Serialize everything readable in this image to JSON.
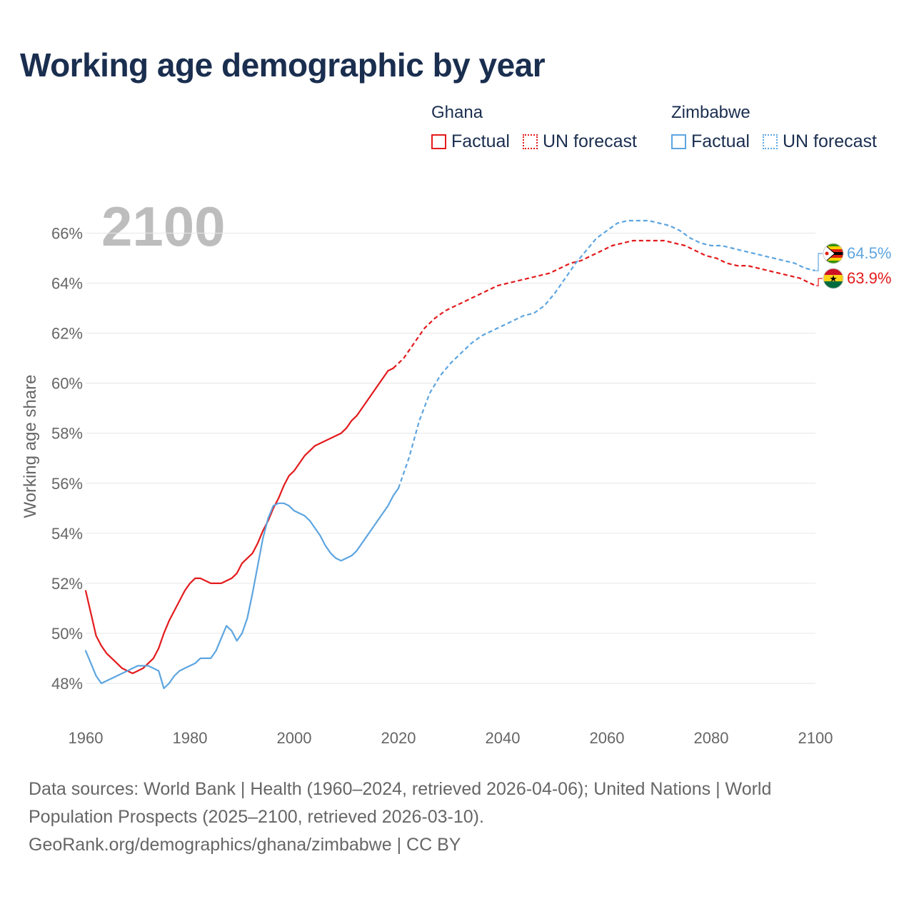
{
  "title": "Working age demographic by year",
  "legend": {
    "groups": [
      {
        "country": "Ghana",
        "factual_label": "Factual",
        "forecast_label": "UN forecast",
        "color": "#e31a1c"
      },
      {
        "country": "Zimbabwe",
        "factual_label": "Factual",
        "forecast_label": "UN forecast",
        "color": "#5da5e0"
      }
    ]
  },
  "year_display": "2100",
  "footer": {
    "line1": "Data sources: World Bank | Health (1960–2024, retrieved 2026-04-06); United Nations | World",
    "line2": "Population Prospects (2025–2100, retrieved 2026-03-10).",
    "line3": "GeoRank.org/demographics/ghana/zimbabwe | CC BY"
  },
  "chart_data": {
    "type": "line",
    "title": "Working age demographic by year",
    "xlabel": "",
    "ylabel": "Working age share",
    "xlim": [
      1960,
      2100
    ],
    "ylim": [
      46.4,
      67.5
    ],
    "x_ticks": [
      1960,
      1980,
      2000,
      2020,
      2040,
      2060,
      2080,
      2100
    ],
    "y_ticks": [
      48,
      50,
      52,
      54,
      56,
      58,
      60,
      62,
      64,
      66
    ],
    "y_tick_labels": [
      "48%",
      "50%",
      "52%",
      "54%",
      "56%",
      "58%",
      "60%",
      "62%",
      "64%",
      "66%"
    ],
    "grid": "horizontal",
    "series": [
      {
        "name": "Ghana",
        "segment": "Factual",
        "color": "#e31a1c",
        "style": "solid",
        "points": [
          [
            1960,
            51.7
          ],
          [
            1961,
            50.8
          ],
          [
            1962,
            49.9
          ],
          [
            1963,
            49.5
          ],
          [
            1964,
            49.2
          ],
          [
            1965,
            49.0
          ],
          [
            1966,
            48.8
          ],
          [
            1967,
            48.6
          ],
          [
            1968,
            48.5
          ],
          [
            1969,
            48.4
          ],
          [
            1970,
            48.5
          ],
          [
            1971,
            48.6
          ],
          [
            1972,
            48.8
          ],
          [
            1973,
            49.0
          ],
          [
            1974,
            49.4
          ],
          [
            1975,
            50.0
          ],
          [
            1976,
            50.5
          ],
          [
            1977,
            50.9
          ],
          [
            1978,
            51.3
          ],
          [
            1979,
            51.7
          ],
          [
            1980,
            52.0
          ],
          [
            1981,
            52.2
          ],
          [
            1982,
            52.2
          ],
          [
            1983,
            52.1
          ],
          [
            1984,
            52.0
          ],
          [
            1985,
            52.0
          ],
          [
            1986,
            52.0
          ],
          [
            1987,
            52.1
          ],
          [
            1988,
            52.2
          ],
          [
            1989,
            52.4
          ],
          [
            1990,
            52.8
          ],
          [
            1991,
            53.0
          ],
          [
            1992,
            53.2
          ],
          [
            1993,
            53.6
          ],
          [
            1994,
            54.1
          ],
          [
            1995,
            54.5
          ],
          [
            1996,
            55.0
          ],
          [
            1997,
            55.4
          ],
          [
            1998,
            55.9
          ],
          [
            1999,
            56.3
          ],
          [
            2000,
            56.5
          ],
          [
            2001,
            56.8
          ],
          [
            2002,
            57.1
          ],
          [
            2003,
            57.3
          ],
          [
            2004,
            57.5
          ],
          [
            2005,
            57.6
          ],
          [
            2006,
            57.7
          ],
          [
            2007,
            57.8
          ],
          [
            2008,
            57.9
          ],
          [
            2009,
            58.0
          ],
          [
            2010,
            58.2
          ],
          [
            2011,
            58.5
          ],
          [
            2012,
            58.7
          ],
          [
            2013,
            59.0
          ],
          [
            2014,
            59.3
          ],
          [
            2015,
            59.6
          ],
          [
            2016,
            59.9
          ],
          [
            2017,
            60.2
          ],
          [
            2018,
            60.5
          ],
          [
            2019,
            60.6
          ]
        ]
      },
      {
        "name": "Ghana",
        "segment": "UN forecast",
        "color": "#e31a1c",
        "style": "dashed",
        "points": [
          [
            2019,
            60.6
          ],
          [
            2021,
            61.0
          ],
          [
            2023,
            61.6
          ],
          [
            2025,
            62.2
          ],
          [
            2027,
            62.6
          ],
          [
            2029,
            62.9
          ],
          [
            2031,
            63.1
          ],
          [
            2033,
            63.3
          ],
          [
            2035,
            63.5
          ],
          [
            2037,
            63.7
          ],
          [
            2039,
            63.9
          ],
          [
            2041,
            64.0
          ],
          [
            2043,
            64.1
          ],
          [
            2045,
            64.2
          ],
          [
            2047,
            64.3
          ],
          [
            2049,
            64.4
          ],
          [
            2051,
            64.6
          ],
          [
            2053,
            64.8
          ],
          [
            2055,
            64.9
          ],
          [
            2057,
            65.1
          ],
          [
            2059,
            65.3
          ],
          [
            2061,
            65.5
          ],
          [
            2063,
            65.6
          ],
          [
            2065,
            65.7
          ],
          [
            2067,
            65.7
          ],
          [
            2069,
            65.7
          ],
          [
            2071,
            65.7
          ],
          [
            2073,
            65.6
          ],
          [
            2075,
            65.5
          ],
          [
            2077,
            65.3
          ],
          [
            2079,
            65.1
          ],
          [
            2081,
            65.0
          ],
          [
            2083,
            64.8
          ],
          [
            2085,
            64.7
          ],
          [
            2087,
            64.7
          ],
          [
            2089,
            64.6
          ],
          [
            2091,
            64.5
          ],
          [
            2093,
            64.4
          ],
          [
            2095,
            64.3
          ],
          [
            2097,
            64.2
          ],
          [
            2099,
            64.0
          ],
          [
            2100,
            63.9
          ]
        ]
      },
      {
        "name": "Zimbabwe",
        "segment": "Factual",
        "color": "#5da5e0",
        "style": "solid",
        "points": [
          [
            1960,
            49.3
          ],
          [
            1961,
            48.8
          ],
          [
            1962,
            48.3
          ],
          [
            1963,
            48.0
          ],
          [
            1964,
            48.1
          ],
          [
            1965,
            48.2
          ],
          [
            1966,
            48.3
          ],
          [
            1967,
            48.4
          ],
          [
            1968,
            48.5
          ],
          [
            1969,
            48.6
          ],
          [
            1970,
            48.7
          ],
          [
            1971,
            48.7
          ],
          [
            1972,
            48.7
          ],
          [
            1973,
            48.6
          ],
          [
            1974,
            48.5
          ],
          [
            1975,
            47.8
          ],
          [
            1976,
            48.0
          ],
          [
            1977,
            48.3
          ],
          [
            1978,
            48.5
          ],
          [
            1979,
            48.6
          ],
          [
            1980,
            48.7
          ],
          [
            1981,
            48.8
          ],
          [
            1982,
            49.0
          ],
          [
            1983,
            49.0
          ],
          [
            1984,
            49.0
          ],
          [
            1985,
            49.3
          ],
          [
            1986,
            49.8
          ],
          [
            1987,
            50.3
          ],
          [
            1988,
            50.1
          ],
          [
            1989,
            49.7
          ],
          [
            1990,
            50.0
          ],
          [
            1991,
            50.6
          ],
          [
            1992,
            51.6
          ],
          [
            1993,
            52.7
          ],
          [
            1994,
            53.8
          ],
          [
            1995,
            54.6
          ],
          [
            1996,
            55.1
          ],
          [
            1997,
            55.2
          ],
          [
            1998,
            55.2
          ],
          [
            1999,
            55.1
          ],
          [
            2000,
            54.9
          ],
          [
            2001,
            54.8
          ],
          [
            2002,
            54.7
          ],
          [
            2003,
            54.5
          ],
          [
            2004,
            54.2
          ],
          [
            2005,
            53.9
          ],
          [
            2006,
            53.5
          ],
          [
            2007,
            53.2
          ],
          [
            2008,
            53.0
          ],
          [
            2009,
            52.9
          ],
          [
            2010,
            53.0
          ],
          [
            2011,
            53.1
          ],
          [
            2012,
            53.3
          ],
          [
            2013,
            53.6
          ],
          [
            2014,
            53.9
          ],
          [
            2015,
            54.2
          ],
          [
            2016,
            54.5
          ],
          [
            2017,
            54.8
          ],
          [
            2018,
            55.1
          ],
          [
            2019,
            55.5
          ],
          [
            2020,
            55.8
          ]
        ]
      },
      {
        "name": "Zimbabwe",
        "segment": "UN forecast",
        "color": "#5da5e0",
        "style": "dashed",
        "points": [
          [
            2020,
            55.8
          ],
          [
            2022,
            57.0
          ],
          [
            2024,
            58.5
          ],
          [
            2026,
            59.6
          ],
          [
            2028,
            60.3
          ],
          [
            2030,
            60.8
          ],
          [
            2032,
            61.2
          ],
          [
            2034,
            61.6
          ],
          [
            2036,
            61.9
          ],
          [
            2038,
            62.1
          ],
          [
            2040,
            62.3
          ],
          [
            2042,
            62.5
          ],
          [
            2044,
            62.7
          ],
          [
            2046,
            62.8
          ],
          [
            2048,
            63.1
          ],
          [
            2050,
            63.6
          ],
          [
            2052,
            64.2
          ],
          [
            2054,
            64.8
          ],
          [
            2056,
            65.3
          ],
          [
            2058,
            65.8
          ],
          [
            2060,
            66.1
          ],
          [
            2062,
            66.4
          ],
          [
            2064,
            66.5
          ],
          [
            2066,
            66.5
          ],
          [
            2068,
            66.5
          ],
          [
            2070,
            66.4
          ],
          [
            2072,
            66.3
          ],
          [
            2074,
            66.1
          ],
          [
            2076,
            65.8
          ],
          [
            2078,
            65.6
          ],
          [
            2080,
            65.5
          ],
          [
            2082,
            65.5
          ],
          [
            2084,
            65.4
          ],
          [
            2086,
            65.3
          ],
          [
            2088,
            65.2
          ],
          [
            2090,
            65.1
          ],
          [
            2092,
            65.0
          ],
          [
            2094,
            64.9
          ],
          [
            2096,
            64.8
          ],
          [
            2098,
            64.6
          ],
          [
            2100,
            64.5
          ]
        ]
      }
    ],
    "end_labels": [
      {
        "country": "Zimbabwe",
        "value": 64.5,
        "text": "64.5%",
        "color": "#5da5e0",
        "flag": "zimbabwe-flag"
      },
      {
        "country": "Ghana",
        "value": 63.9,
        "text": "63.9%",
        "color": "#e31a1c",
        "flag": "ghana-flag"
      }
    ]
  }
}
